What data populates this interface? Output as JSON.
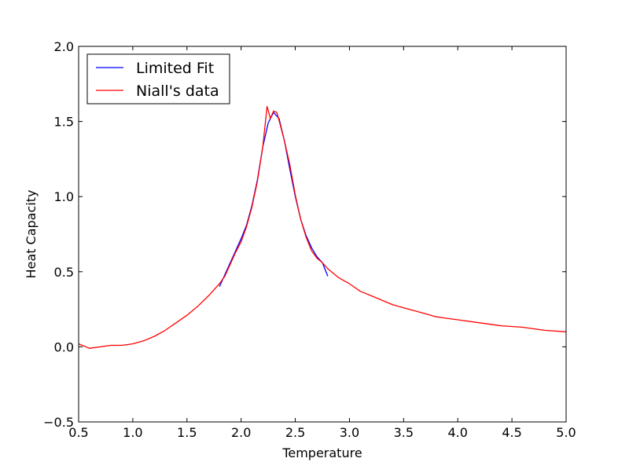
{
  "chart_data": {
    "type": "line",
    "title": "",
    "xlabel": "Temperature",
    "ylabel": "Heat Capacity",
    "xlim": [
      0.5,
      5.0
    ],
    "ylim": [
      -0.5,
      2.0
    ],
    "x_ticks": [
      0.5,
      1.0,
      1.5,
      2.0,
      2.5,
      3.0,
      3.5,
      4.0,
      4.5,
      5.0
    ],
    "x_tick_labels": [
      "0.5",
      "1.0",
      "1.5",
      "2.0",
      "2.5",
      "3.0",
      "3.5",
      "4.0",
      "4.5",
      "5.0"
    ],
    "y_ticks": [
      -0.5,
      0.0,
      0.5,
      1.0,
      1.5,
      2.0
    ],
    "y_tick_labels": [
      "−0.5",
      "0.0",
      "0.5",
      "1.0",
      "1.5",
      "2.0"
    ],
    "grid": false,
    "legend_position": "top-left",
    "series": [
      {
        "name": "Limited Fit",
        "color": "#0000ff",
        "x": [
          1.8,
          1.85,
          1.9,
          1.95,
          2.0,
          2.05,
          2.1,
          2.15,
          2.2,
          2.25,
          2.3,
          2.35,
          2.4,
          2.45,
          2.5,
          2.55,
          2.6,
          2.65,
          2.7,
          2.75,
          2.8
        ],
        "y": [
          0.4,
          0.48,
          0.56,
          0.64,
          0.72,
          0.81,
          0.94,
          1.11,
          1.33,
          1.49,
          1.56,
          1.52,
          1.37,
          1.18,
          1.0,
          0.85,
          0.74,
          0.66,
          0.6,
          0.56,
          0.47
        ]
      },
      {
        "name": "Niall's data",
        "color": "#ff0000",
        "x": [
          0.5,
          0.6,
          0.7,
          0.8,
          0.9,
          1.0,
          1.1,
          1.2,
          1.3,
          1.4,
          1.5,
          1.6,
          1.7,
          1.8,
          1.85,
          1.9,
          1.95,
          2.0,
          2.05,
          2.1,
          2.15,
          2.2,
          2.24,
          2.27,
          2.3,
          2.33,
          2.36,
          2.4,
          2.45,
          2.5,
          2.55,
          2.6,
          2.65,
          2.7,
          2.75,
          2.8,
          2.85,
          2.9,
          3.0,
          3.1,
          3.2,
          3.3,
          3.4,
          3.5,
          3.6,
          3.7,
          3.8,
          3.9,
          4.0,
          4.2,
          4.4,
          4.6,
          4.8,
          5.0
        ],
        "y": [
          0.02,
          -0.01,
          0.0,
          0.01,
          0.01,
          0.02,
          0.04,
          0.07,
          0.11,
          0.16,
          0.21,
          0.27,
          0.34,
          0.42,
          0.47,
          0.55,
          0.63,
          0.7,
          0.8,
          0.93,
          1.1,
          1.33,
          1.6,
          1.52,
          1.57,
          1.56,
          1.48,
          1.37,
          1.21,
          1.01,
          0.85,
          0.73,
          0.64,
          0.59,
          0.56,
          0.52,
          0.49,
          0.46,
          0.42,
          0.37,
          0.34,
          0.31,
          0.28,
          0.26,
          0.24,
          0.22,
          0.2,
          0.19,
          0.18,
          0.16,
          0.14,
          0.13,
          0.11,
          0.1
        ]
      }
    ]
  }
}
